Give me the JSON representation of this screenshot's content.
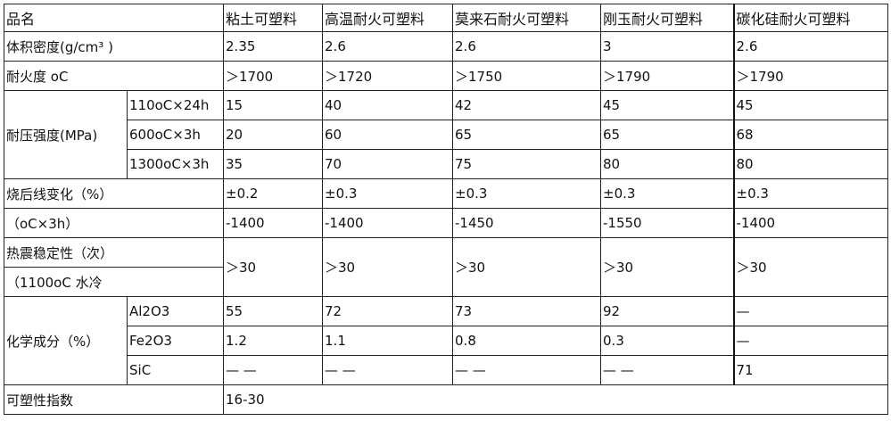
{
  "header": {
    "label": "品名",
    "products": [
      "粘土可塑料",
      "高温耐火可塑料",
      "莫来石耐火可塑料",
      "刚玉耐火可塑料",
      "碳化硅耐火可塑料"
    ]
  },
  "bulk_density": {
    "label": "体积密度(g/cm³ )",
    "values": [
      "2.35",
      "2.6",
      "2.6",
      "3",
      "2.6"
    ]
  },
  "refractoriness": {
    "label": "耐火度 oC",
    "values": [
      "＞1700",
      "＞1720",
      "＞1750",
      "＞1790",
      "＞1790"
    ]
  },
  "compressive_strength": {
    "label": "耐压强度(MPa)",
    "conditions": [
      "110oC×24h",
      "600oC×3h",
      "1300oC×3h"
    ],
    "values": [
      [
        "15",
        "40",
        "42",
        "45",
        "45"
      ],
      [
        "20",
        "60",
        "65",
        "65",
        "68"
      ],
      [
        "35",
        "70",
        "75",
        "80",
        "80"
      ]
    ]
  },
  "linear_change": {
    "label": "烧后线变化（%）",
    "values": [
      "±0.2",
      "±0.3",
      "±0.3",
      "±0.3",
      "±0.3"
    ],
    "condition_label": "（oC×3h）",
    "condition_values": [
      "-1400",
      "-1400",
      "-1450",
      "-1550",
      "-1400"
    ]
  },
  "thermal_shock": {
    "label": "热震稳定性（次）",
    "sublabel": "（1100oC 水冷",
    "values": [
      "＞30",
      "＞30",
      "＞30",
      "＞30",
      "＞30"
    ]
  },
  "chemical": {
    "label": "化学成分（%）",
    "components": [
      "Al2O3",
      "Fe2O3",
      "SiC"
    ],
    "values": [
      [
        "55",
        "72",
        "73",
        "92",
        "—"
      ],
      [
        "1.2",
        "1.1",
        "0.8",
        "0.3",
        "—"
      ],
      [
        "— —",
        "— —",
        "— —",
        "— —",
        "71"
      ]
    ]
  },
  "plasticity": {
    "label": "可塑性指数",
    "value": "16-30"
  }
}
